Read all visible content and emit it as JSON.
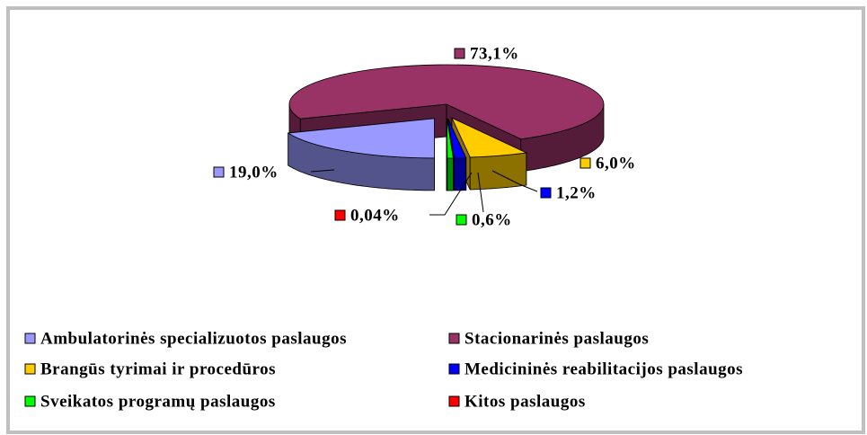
{
  "chart_data": {
    "type": "pie",
    "categories": [
      "Ambulatorinės specializuotos paslaugos",
      "Stacionarinės paslaugos",
      "Brangūs tyrimai ir procedūros",
      "Medicininės reabilitacijos paslaugos",
      "Sveikatos programų paslaugos",
      "Kitos paslaugos"
    ],
    "values": [
      19.0,
      73.1,
      6.0,
      1.2,
      0.6,
      0.04
    ],
    "value_labels": [
      "19,0%",
      "73,1%",
      "6,0%",
      "1,2%",
      "0,6%",
      "0,04%"
    ],
    "colors": [
      "#9999ff",
      "#993366",
      "#ffcc00",
      "#0000ff",
      "#00ff00",
      "#ff0000"
    ],
    "legend": "bottom"
  }
}
